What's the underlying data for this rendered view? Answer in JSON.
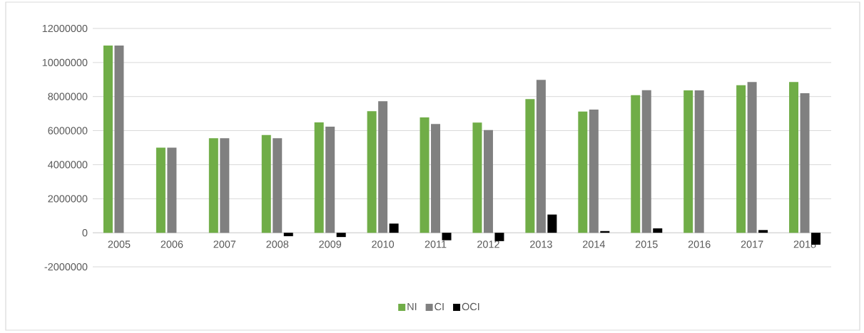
{
  "chart_data": {
    "type": "bar",
    "categories": [
      "2005",
      "2006",
      "2007",
      "2008",
      "2009",
      "2010",
      "2011",
      "2012",
      "2013",
      "2014",
      "2015",
      "2016",
      "2017",
      "2018"
    ],
    "series": [
      {
        "name": "NI",
        "color": "#70ad47",
        "values": [
          11000000,
          5000000,
          5550000,
          5740000,
          6480000,
          7140000,
          6780000,
          6470000,
          7850000,
          7120000,
          8080000,
          8360000,
          8670000,
          8850000
        ]
      },
      {
        "name": "CI",
        "color": "#808080",
        "values": [
          11000000,
          5000000,
          5550000,
          5550000,
          6230000,
          7730000,
          6390000,
          6030000,
          8980000,
          7240000,
          8370000,
          8360000,
          8860000,
          8200000
        ]
      },
      {
        "name": "OCI",
        "color": "#000000",
        "values": [
          0,
          0,
          0,
          -200000,
          -250000,
          540000,
          -440000,
          -490000,
          1070000,
          100000,
          260000,
          0,
          160000,
          -700000
        ]
      }
    ],
    "ylim": [
      -2000000,
      12000000
    ],
    "yticks": [
      -2000000,
      0,
      2000000,
      4000000,
      6000000,
      8000000,
      10000000,
      12000000
    ],
    "grid": "y",
    "legend": "bottom"
  }
}
